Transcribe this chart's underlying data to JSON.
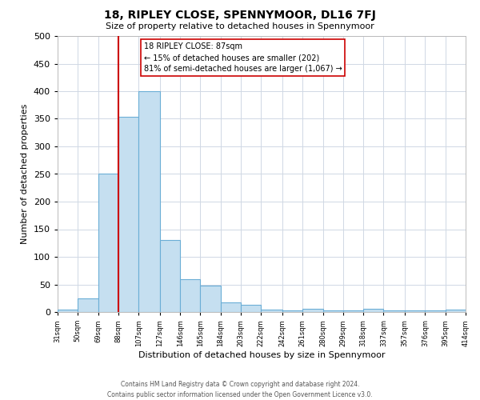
{
  "title": "18, RIPLEY CLOSE, SPENNYMOOR, DL16 7FJ",
  "subtitle": "Size of property relative to detached houses in Spennymoor",
  "xlabel": "Distribution of detached houses by size in Spennymoor",
  "ylabel": "Number of detached properties",
  "footer_line1": "Contains HM Land Registry data © Crown copyright and database right 2024.",
  "footer_line2": "Contains public sector information licensed under the Open Government Licence v3.0.",
  "bar_edges": [
    31,
    50,
    69,
    88,
    107,
    127,
    146,
    165,
    184,
    203,
    222,
    242,
    261,
    280,
    299,
    318,
    337,
    357,
    376,
    395,
    414
  ],
  "bar_heights": [
    5,
    25,
    250,
    353,
    400,
    130,
    60,
    48,
    18,
    13,
    4,
    3,
    6,
    3,
    3,
    6,
    3,
    3,
    3,
    4
  ],
  "bar_color": "#c5dff0",
  "bar_edgecolor": "#6baed6",
  "property_line_x": 88,
  "property_line_color": "#cc0000",
  "ylim": [
    0,
    500
  ],
  "annotation_text": "18 RIPLEY CLOSE: 87sqm\n← 15% of detached houses are smaller (202)\n81% of semi-detached houses are larger (1,067) →",
  "tick_labels": [
    "31sqm",
    "50sqm",
    "69sqm",
    "88sqm",
    "107sqm",
    "127sqm",
    "146sqm",
    "165sqm",
    "184sqm",
    "203sqm",
    "222sqm",
    "242sqm",
    "261sqm",
    "280sqm",
    "299sqm",
    "318sqm",
    "337sqm",
    "357sqm",
    "376sqm",
    "395sqm",
    "414sqm"
  ],
  "grid_color": "#d0d8e4",
  "background_color": "#ffffff"
}
